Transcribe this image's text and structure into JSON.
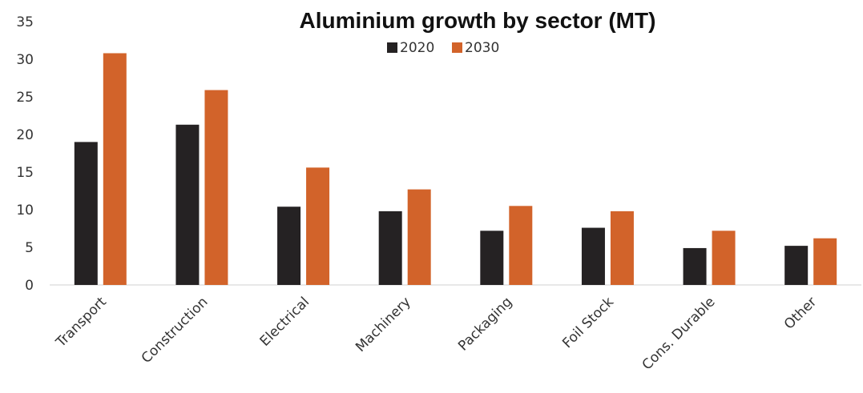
{
  "chart_data": {
    "type": "bar",
    "title": "Aluminium growth by sector (MT)",
    "xlabel": "",
    "ylabel": "",
    "categories": [
      "Transport",
      "Construction",
      "Electrical",
      "Machinery",
      "Packaging",
      "Foil Stock",
      "Cons. Durable",
      "Other"
    ],
    "series": [
      {
        "name": "2020",
        "color": "#252223",
        "values": [
          19.0,
          21.3,
          10.4,
          9.8,
          7.2,
          7.6,
          4.9,
          5.2
        ]
      },
      {
        "name": "2030",
        "color": "#D2632A",
        "values": [
          30.8,
          25.9,
          15.6,
          12.7,
          10.5,
          9.8,
          7.2,
          6.2
        ]
      }
    ],
    "ylim": [
      0,
      35
    ],
    "yticks": [
      0,
      5,
      10,
      15,
      20,
      25,
      30,
      35
    ],
    "grid": false,
    "legend_position": "top-center"
  }
}
